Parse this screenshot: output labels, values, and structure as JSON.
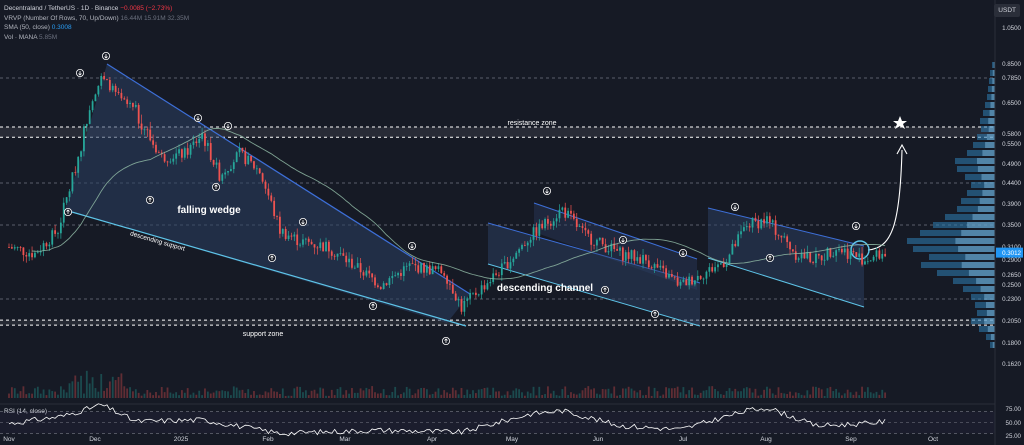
{
  "legend": {
    "symbol": "Decentraland / TetherUS · 1D · Binance",
    "change": "−0.0085 (−2.73%)",
    "vrvp_label": "VRVP (Number Of Rows, 70, Up/Down)",
    "vrvp_vals": "16.44M  15.91M  32.35M",
    "sma_label": "SMA (50, close)",
    "sma_val": "0.3008",
    "vol_label": "Vol · MANA",
    "vol_val": "5.85M"
  },
  "currency": "USDT",
  "colors": {
    "background": "#161a25",
    "up": "#26a69a",
    "down": "#ef5350",
    "wedge_fill": "#2c3f63",
    "trendline": "#3d6fd8",
    "support_line": "#5ec4e8",
    "sma": "#8fb8a4",
    "rsi": "#ffffff",
    "current_price": "#2196f3"
  },
  "chart_data": {
    "type": "candlestick",
    "x_ticks": [
      "Nov",
      "Dec",
      "2025",
      "Feb",
      "Mar",
      "Apr",
      "May",
      "Jun",
      "Jul",
      "Aug",
      "Sep",
      "Oct"
    ],
    "y_axis_labels": [
      "1.0500",
      "0.8500",
      "0.7850",
      "0.6500",
      "0.5800",
      "0.5500",
      "0.4900",
      "0.4400",
      "0.3900",
      "0.3500",
      "0.3100",
      "0.2900",
      "0.2650",
      "0.2500",
      "0.2300",
      "0.2050",
      "0.1800",
      "0.1620"
    ],
    "y_scale": "log",
    "current_price_label": "0.3012",
    "close_anchors": [
      {
        "date": "Nov 1",
        "price": 0.31
      },
      {
        "date": "Nov 10",
        "price": 0.3
      },
      {
        "date": "Nov 18",
        "price": 0.34
      },
      {
        "date": "Nov 24",
        "price": 0.48
      },
      {
        "date": "Nov 28",
        "price": 0.62
      },
      {
        "date": "Dec 3",
        "price": 0.78
      },
      {
        "date": "Dec 6",
        "price": 0.74
      },
      {
        "date": "Dec 10",
        "price": 0.66
      },
      {
        "date": "Dec 17",
        "price": 0.61
      },
      {
        "date": "Dec 24",
        "price": 0.51
      },
      {
        "date": "Jan 1",
        "price": 0.52
      },
      {
        "date": "Jan 7",
        "price": 0.58
      },
      {
        "date": "Jan 13",
        "price": 0.46
      },
      {
        "date": "Jan 20",
        "price": 0.52
      },
      {
        "date": "Jan 27",
        "price": 0.47
      },
      {
        "date": "Feb 3",
        "price": 0.34
      },
      {
        "date": "Feb 10",
        "price": 0.32
      },
      {
        "date": "Feb 20",
        "price": 0.31
      },
      {
        "date": "Mar 1",
        "price": 0.28
      },
      {
        "date": "Mar 10",
        "price": 0.25
      },
      {
        "date": "Mar 20",
        "price": 0.28
      },
      {
        "date": "Apr 1",
        "price": 0.27
      },
      {
        "date": "Apr 7",
        "price": 0.22
      },
      {
        "date": "Apr 15",
        "price": 0.25
      },
      {
        "date": "Apr 22",
        "price": 0.28
      },
      {
        "date": "May 1",
        "price": 0.33
      },
      {
        "date": "May 12",
        "price": 0.38
      },
      {
        "date": "May 20",
        "price": 0.33
      },
      {
        "date": "Jun 1",
        "price": 0.3
      },
      {
        "date": "Jun 10",
        "price": 0.29
      },
      {
        "date": "Jun 22",
        "price": 0.25
      },
      {
        "date": "Jul 1",
        "price": 0.27
      },
      {
        "date": "Jul 8",
        "price": 0.29
      },
      {
        "date": "Jul 15",
        "price": 0.35
      },
      {
        "date": "Jul 22",
        "price": 0.36
      },
      {
        "date": "Aug 1",
        "price": 0.3
      },
      {
        "date": "Aug 8",
        "price": 0.29
      },
      {
        "date": "Aug 15",
        "price": 0.31
      },
      {
        "date": "Aug 25",
        "price": 0.29
      },
      {
        "date": "Sep 1",
        "price": 0.301
      }
    ],
    "annotations": {
      "resistance_zone": "resistance zone",
      "support_zone": "support zone",
      "falling_wedge": "falling wedge",
      "descending_support": "descending support",
      "descending_channel": "descending channel"
    },
    "zones": {
      "resistance": [
        0.57,
        0.595
      ],
      "support": [
        0.2,
        0.206
      ]
    },
    "rsi": {
      "label": "RSI (14, close)",
      "y_axis_labels": [
        "75.00",
        "50.00",
        "25.00"
      ],
      "levels": [
        70,
        50,
        30
      ],
      "anchors": [
        {
          "date": "Nov 1",
          "value": 48
        },
        {
          "date": "Nov 20",
          "value": 62
        },
        {
          "date": "Dec 3",
          "value": 83
        },
        {
          "date": "Dec 15",
          "value": 52
        },
        {
          "date": "Jan 7",
          "value": 55
        },
        {
          "date": "Feb 3",
          "value": 30
        },
        {
          "date": "Mar 10",
          "value": 36
        },
        {
          "date": "Apr 7",
          "value": 32
        },
        {
          "date": "May 1",
          "value": 66
        },
        {
          "date": "May 12",
          "value": 72
        },
        {
          "date": "Jun 1",
          "value": 44
        },
        {
          "date": "Jun 22",
          "value": 37
        },
        {
          "date": "Jul 15",
          "value": 72
        },
        {
          "date": "Jul 22",
          "value": 78
        },
        {
          "date": "Aug 8",
          "value": 44
        },
        {
          "date": "Aug 25",
          "value": 48
        },
        {
          "date": "Sep 1",
          "value": 52
        }
      ]
    }
  }
}
